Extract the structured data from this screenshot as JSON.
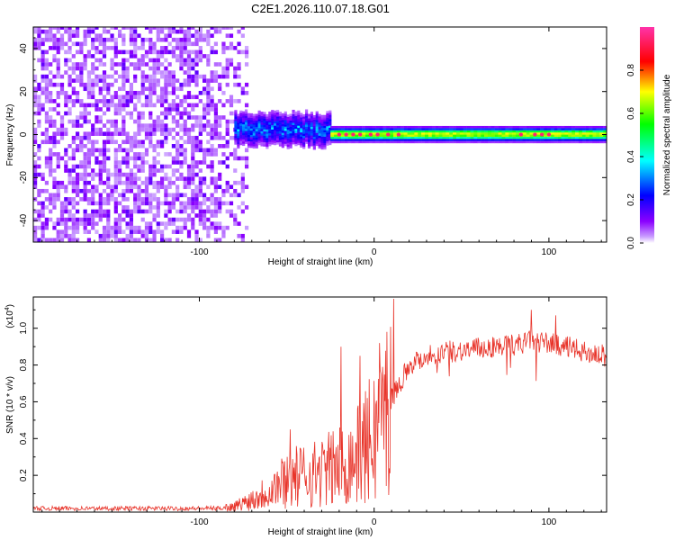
{
  "figure": {
    "title": "C2E1.2026.110.07.18.G01"
  },
  "chart_data": [
    {
      "type": "heatmap",
      "title": "C2E1.2026.110.07.18.G01",
      "xlabel": "Height of straight line (km)",
      "ylabel": "Frequency (Hz)",
      "xlim": [
        -195,
        133
      ],
      "ylim": [
        -50,
        50
      ],
      "xticks": [
        -100,
        0,
        100
      ],
      "yticks": [
        -40,
        -20,
        0,
        20,
        40
      ],
      "xtick_labels": [
        "-100",
        "0",
        "100"
      ],
      "ytick_labels": [
        "-40",
        "-20",
        "0",
        "20",
        "40"
      ],
      "colorbar": {
        "label": "Normalized spectral amplitude",
        "range": [
          0,
          1
        ],
        "ticks": [
          0,
          0.2,
          0.4,
          0.6,
          0.8
        ],
        "tick_labels": [
          "0.0",
          "0.2",
          "0.4",
          "0.6",
          "0.8"
        ],
        "colormap": "rainbow (violet→blue→cyan→green→yellow→red→magenta)"
      },
      "regions": [
        {
          "name": "noise",
          "x_range": [
            -195,
            -80
          ],
          "freq_range": [
            -50,
            50
          ],
          "amplitude_range": [
            0.0,
            0.15
          ]
        },
        {
          "name": "onset",
          "x_range": [
            -80,
            -25
          ],
          "center_freq": 2,
          "freq_halfwidth": 5,
          "amplitude_range": [
            0.2,
            0.4
          ]
        },
        {
          "name": "carrier",
          "x_range": [
            -25,
            133
          ],
          "center_freq": 0,
          "freq_halfwidth": 3,
          "peak_amplitude": 0.95
        }
      ]
    },
    {
      "type": "line",
      "title": "",
      "xlabel": "Height of straight line (km)",
      "ylabel": "SNR (10 * v/v)",
      "scale_label": "(x10",
      "scale_exponent": "4",
      "xlim": [
        -195,
        133
      ],
      "ylim": [
        0,
        1.17
      ],
      "xticks": [
        -100,
        0,
        100
      ],
      "xtick_labels": [
        "-100",
        "0",
        "100"
      ],
      "yticks": [
        0.2,
        0.4,
        0.6,
        0.8,
        1.0
      ],
      "ytick_labels": [
        "0.2",
        "0.4",
        "0.6",
        "0.8",
        "1.0"
      ],
      "series": [
        {
          "name": "SNR",
          "color": "#e8342a",
          "x": [
            -195,
            -150,
            -90,
            -80,
            -70,
            -60,
            -50,
            -40,
            -30,
            -20,
            -10,
            0,
            10,
            20,
            30,
            40,
            50,
            60,
            70,
            80,
            90,
            100,
            110,
            120,
            133
          ],
          "y": [
            0.02,
            0.02,
            0.02,
            0.03,
            0.07,
            0.12,
            0.18,
            0.2,
            0.22,
            0.25,
            0.3,
            0.42,
            0.62,
            0.8,
            0.85,
            0.87,
            0.88,
            0.89,
            0.9,
            0.91,
            0.93,
            0.92,
            0.9,
            0.87,
            0.85
          ],
          "spikes": [
            {
              "x": -48,
              "y": 0.45
            },
            {
              "x": -19,
              "y": 0.9
            },
            {
              "x": -8,
              "y": 0.85
            },
            {
              "x": 3,
              "y": 0.92
            },
            {
              "x": 11,
              "y": 1.16
            },
            {
              "x": 90,
              "y": 1.1
            },
            {
              "x": 104,
              "y": 1.07
            }
          ]
        }
      ]
    }
  ]
}
